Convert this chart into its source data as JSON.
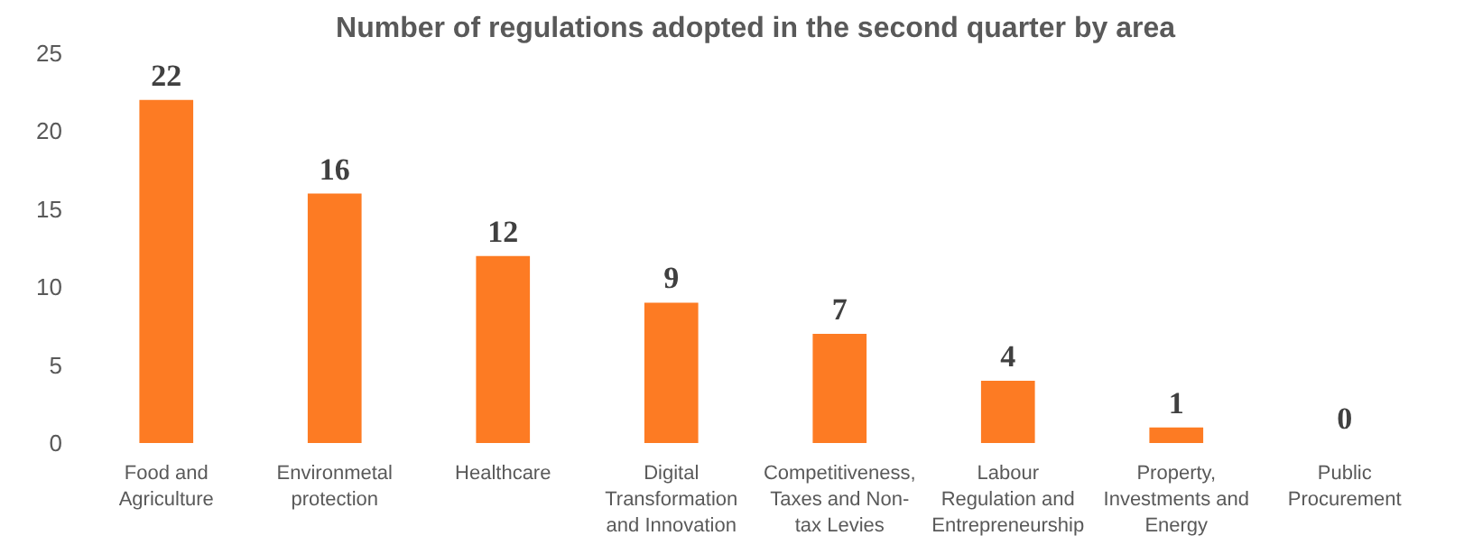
{
  "chart_data": {
    "type": "bar",
    "title": "Number of regulations adopted in the second quarter by area",
    "categories": [
      "Food and Agriculture",
      "Environmetal protection",
      "Healthcare",
      "Digital Transformation and Innovation",
      "Competitiveness, Taxes and Non-tax Levies",
      "Labour Regulation and Entrepreneurship",
      "Property, Investments and Energy",
      "Public Procurement"
    ],
    "values": [
      22,
      16,
      12,
      9,
      7,
      4,
      1,
      0
    ],
    "color": "#fd7b23",
    "ylim": [
      0,
      25
    ],
    "yticks": [
      0,
      5,
      10,
      15,
      20,
      25
    ],
    "grid": false,
    "data_labels": true
  }
}
